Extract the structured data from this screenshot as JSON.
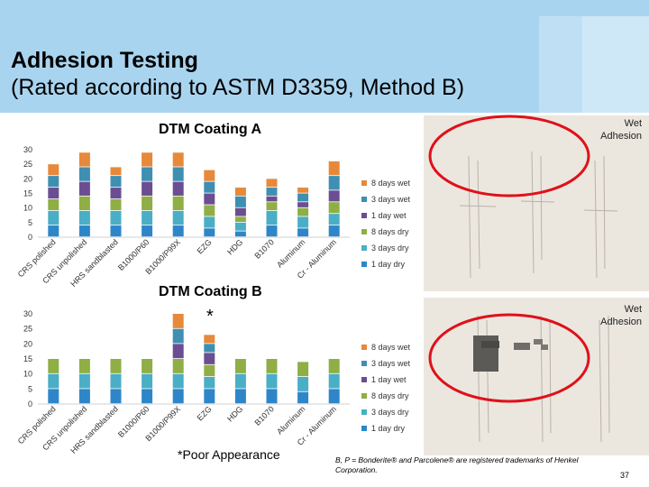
{
  "slide": {
    "title_line1": "Adhesion Testing",
    "title_line2": "(Rated according to ASTM D3359, Method B)",
    "wet_adhesion_label_1": "Wet",
    "wet_adhesion_label_2": "Adhesion",
    "poor_star": "*",
    "poor_appearance": "*Poor Appearance",
    "trademark_note": "B, P = Bonderite® and Parcolene® are registered trademarks of Henkel Corporation.",
    "page_number": "37",
    "colors": {
      "header": "#a9d4ef",
      "highlight_circle": "#e0101a"
    }
  },
  "legend": [
    {
      "label": "8 days wet",
      "color": "#e6893a"
    },
    {
      "label": "3 days wet",
      "color": "#3e8fb2"
    },
    {
      "label": "1 day wet",
      "color": "#6b4e91"
    },
    {
      "label": "8 days dry",
      "color": "#8fae45"
    },
    {
      "label": "3 days dry",
      "color": "#4aaec6"
    },
    {
      "label": "1 day dry",
      "color": "#2e86c9"
    }
  ],
  "chart_data": [
    {
      "type": "bar",
      "stacked": true,
      "title": "DTM Coating A",
      "ylim": [
        0,
        30
      ],
      "yticks": [
        0,
        5,
        10,
        15,
        20,
        25,
        30
      ],
      "grid": false,
      "legend_position": "right",
      "categories": [
        "CRS polished",
        "CRS unpolished",
        "HRS sandblasted",
        "B1000/P60",
        "B1000/P99X",
        "EZG",
        "HDG",
        "B1070",
        "Aluminum",
        "Cr - Aluminum"
      ],
      "series": [
        {
          "name": "1 day dry",
          "values": [
            4,
            4,
            4,
            4,
            4,
            3,
            2,
            4,
            3,
            4
          ]
        },
        {
          "name": "3 days dry",
          "values": [
            5,
            5,
            5,
            5,
            5,
            4,
            3,
            5,
            4,
            4
          ]
        },
        {
          "name": "8 days dry",
          "values": [
            4,
            5,
            4,
            5,
            5,
            4,
            2,
            3,
            3,
            4
          ]
        },
        {
          "name": "1 day wet",
          "values": [
            4,
            5,
            4,
            5,
            5,
            4,
            3,
            2,
            2,
            4
          ]
        },
        {
          "name": "3 days wet",
          "values": [
            4,
            5,
            4,
            5,
            5,
            4,
            4,
            3,
            3,
            5
          ]
        },
        {
          "name": "8 days wet",
          "values": [
            4,
            5,
            3,
            5,
            5,
            4,
            3,
            3,
            2,
            5
          ]
        }
      ]
    },
    {
      "type": "bar",
      "stacked": true,
      "title": "DTM Coating B",
      "ylim": [
        0,
        30
      ],
      "yticks": [
        0,
        5,
        10,
        15,
        20,
        25,
        30
      ],
      "grid": false,
      "legend_position": "right",
      "categories": [
        "CRS polished",
        "CRS unpolished",
        "HRS sandblasted",
        "B1000/P60",
        "B1000/P99X",
        "EZG",
        "HDG",
        "B1070",
        "Aluminum",
        "Cr - Aluminum"
      ],
      "series": [
        {
          "name": "1 day dry",
          "values": [
            5,
            5,
            5,
            5,
            5,
            5,
            5,
            5,
            4,
            5
          ]
        },
        {
          "name": "3 days dry",
          "values": [
            5,
            5,
            5,
            5,
            5,
            4,
            5,
            5,
            5,
            5
          ]
        },
        {
          "name": "8 days dry",
          "values": [
            5,
            5,
            5,
            5,
            5,
            4,
            5,
            5,
            5,
            5
          ]
        },
        {
          "name": "1 day wet",
          "values": [
            0,
            0,
            0,
            0,
            5,
            4,
            0,
            0,
            0,
            0
          ]
        },
        {
          "name": "3 days wet",
          "values": [
            0,
            0,
            0,
            0,
            5,
            3,
            0,
            0,
            0,
            0
          ]
        },
        {
          "name": "8 days wet",
          "values": [
            0,
            0,
            0,
            0,
            5,
            3,
            0,
            0,
            0,
            0
          ]
        }
      ]
    }
  ]
}
